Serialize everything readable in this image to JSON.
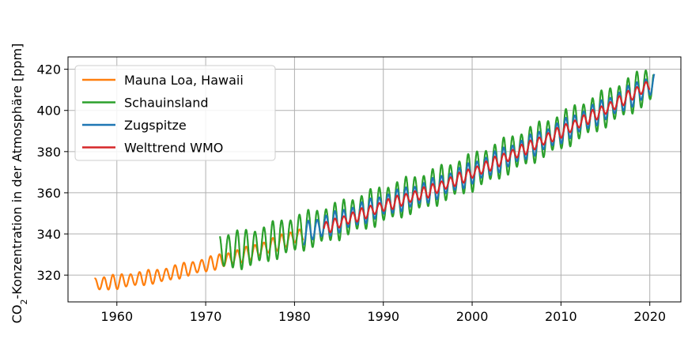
{
  "chart_data": {
    "type": "line",
    "title": "",
    "xlabel": "",
    "ylabel_main": "CO",
    "ylabel_sub": "2",
    "ylabel_rest": "-Konzentration in der Atmosphäre [ppm]",
    "xlim": [
      1954.5,
      2023.5
    ],
    "ylim": [
      307,
      426
    ],
    "xticks": [
      1960,
      1970,
      1980,
      1990,
      2000,
      2010,
      2020
    ],
    "yticks": [
      320,
      340,
      360,
      380,
      400,
      420
    ],
    "grid": true,
    "legend_position": "upper-left",
    "series": [
      {
        "name": "Mauna Loa, Hawaii",
        "color": "#ff7f0e",
        "start": 1957.5,
        "end": 1981.0,
        "trend": [
          [
            1957.5,
            315.5
          ],
          [
            1960,
            316.8
          ],
          [
            1965,
            319.8
          ],
          [
            1970,
            325.0
          ],
          [
            1975,
            330.7
          ],
          [
            1980,
            338.5
          ],
          [
            1981,
            340.0
          ]
        ],
        "amplitude": 3.2
      },
      {
        "name": "Schauinsland",
        "color": "#2ca02c",
        "start": 1971.6,
        "end": 2020.4,
        "trend": [
          [
            1971.6,
            331.5
          ],
          [
            1975,
            333.0
          ],
          [
            1980,
            340.0
          ],
          [
            1985,
            346.5
          ],
          [
            1990,
            354.5
          ],
          [
            1995,
            361.5
          ],
          [
            2000,
            370.0
          ],
          [
            2005,
            380.0
          ],
          [
            2010,
            390.0
          ],
          [
            2015,
            401.0
          ],
          [
            2020.4,
            413.5
          ]
        ],
        "amplitude": 8.5
      },
      {
        "name": "Zugspitze",
        "color": "#1f77b4",
        "start": 1981.0,
        "end": 2020.5,
        "trend": [
          [
            1981,
            340.5
          ],
          [
            1985,
            346.0
          ],
          [
            1990,
            354.0
          ],
          [
            1995,
            360.5
          ],
          [
            2000,
            369.5
          ],
          [
            2005,
            379.5
          ],
          [
            2010,
            389.5
          ],
          [
            2015,
            400.5
          ],
          [
            2020.5,
            413.0
          ]
        ],
        "amplitude": 5.0
      },
      {
        "name": "Welttrend WMO",
        "color": "#d62728",
        "start": 1983.3,
        "end": 2020.0,
        "trend": [
          [
            1983.3,
            342.5
          ],
          [
            1985,
            345.5
          ],
          [
            1990,
            353.5
          ],
          [
            1995,
            360.5
          ],
          [
            2000,
            369.5
          ],
          [
            2005,
            379.5
          ],
          [
            2010,
            389.5
          ],
          [
            2015,
            400.5
          ],
          [
            2020,
            412.5
          ]
        ],
        "amplitude": 2.6
      }
    ]
  }
}
